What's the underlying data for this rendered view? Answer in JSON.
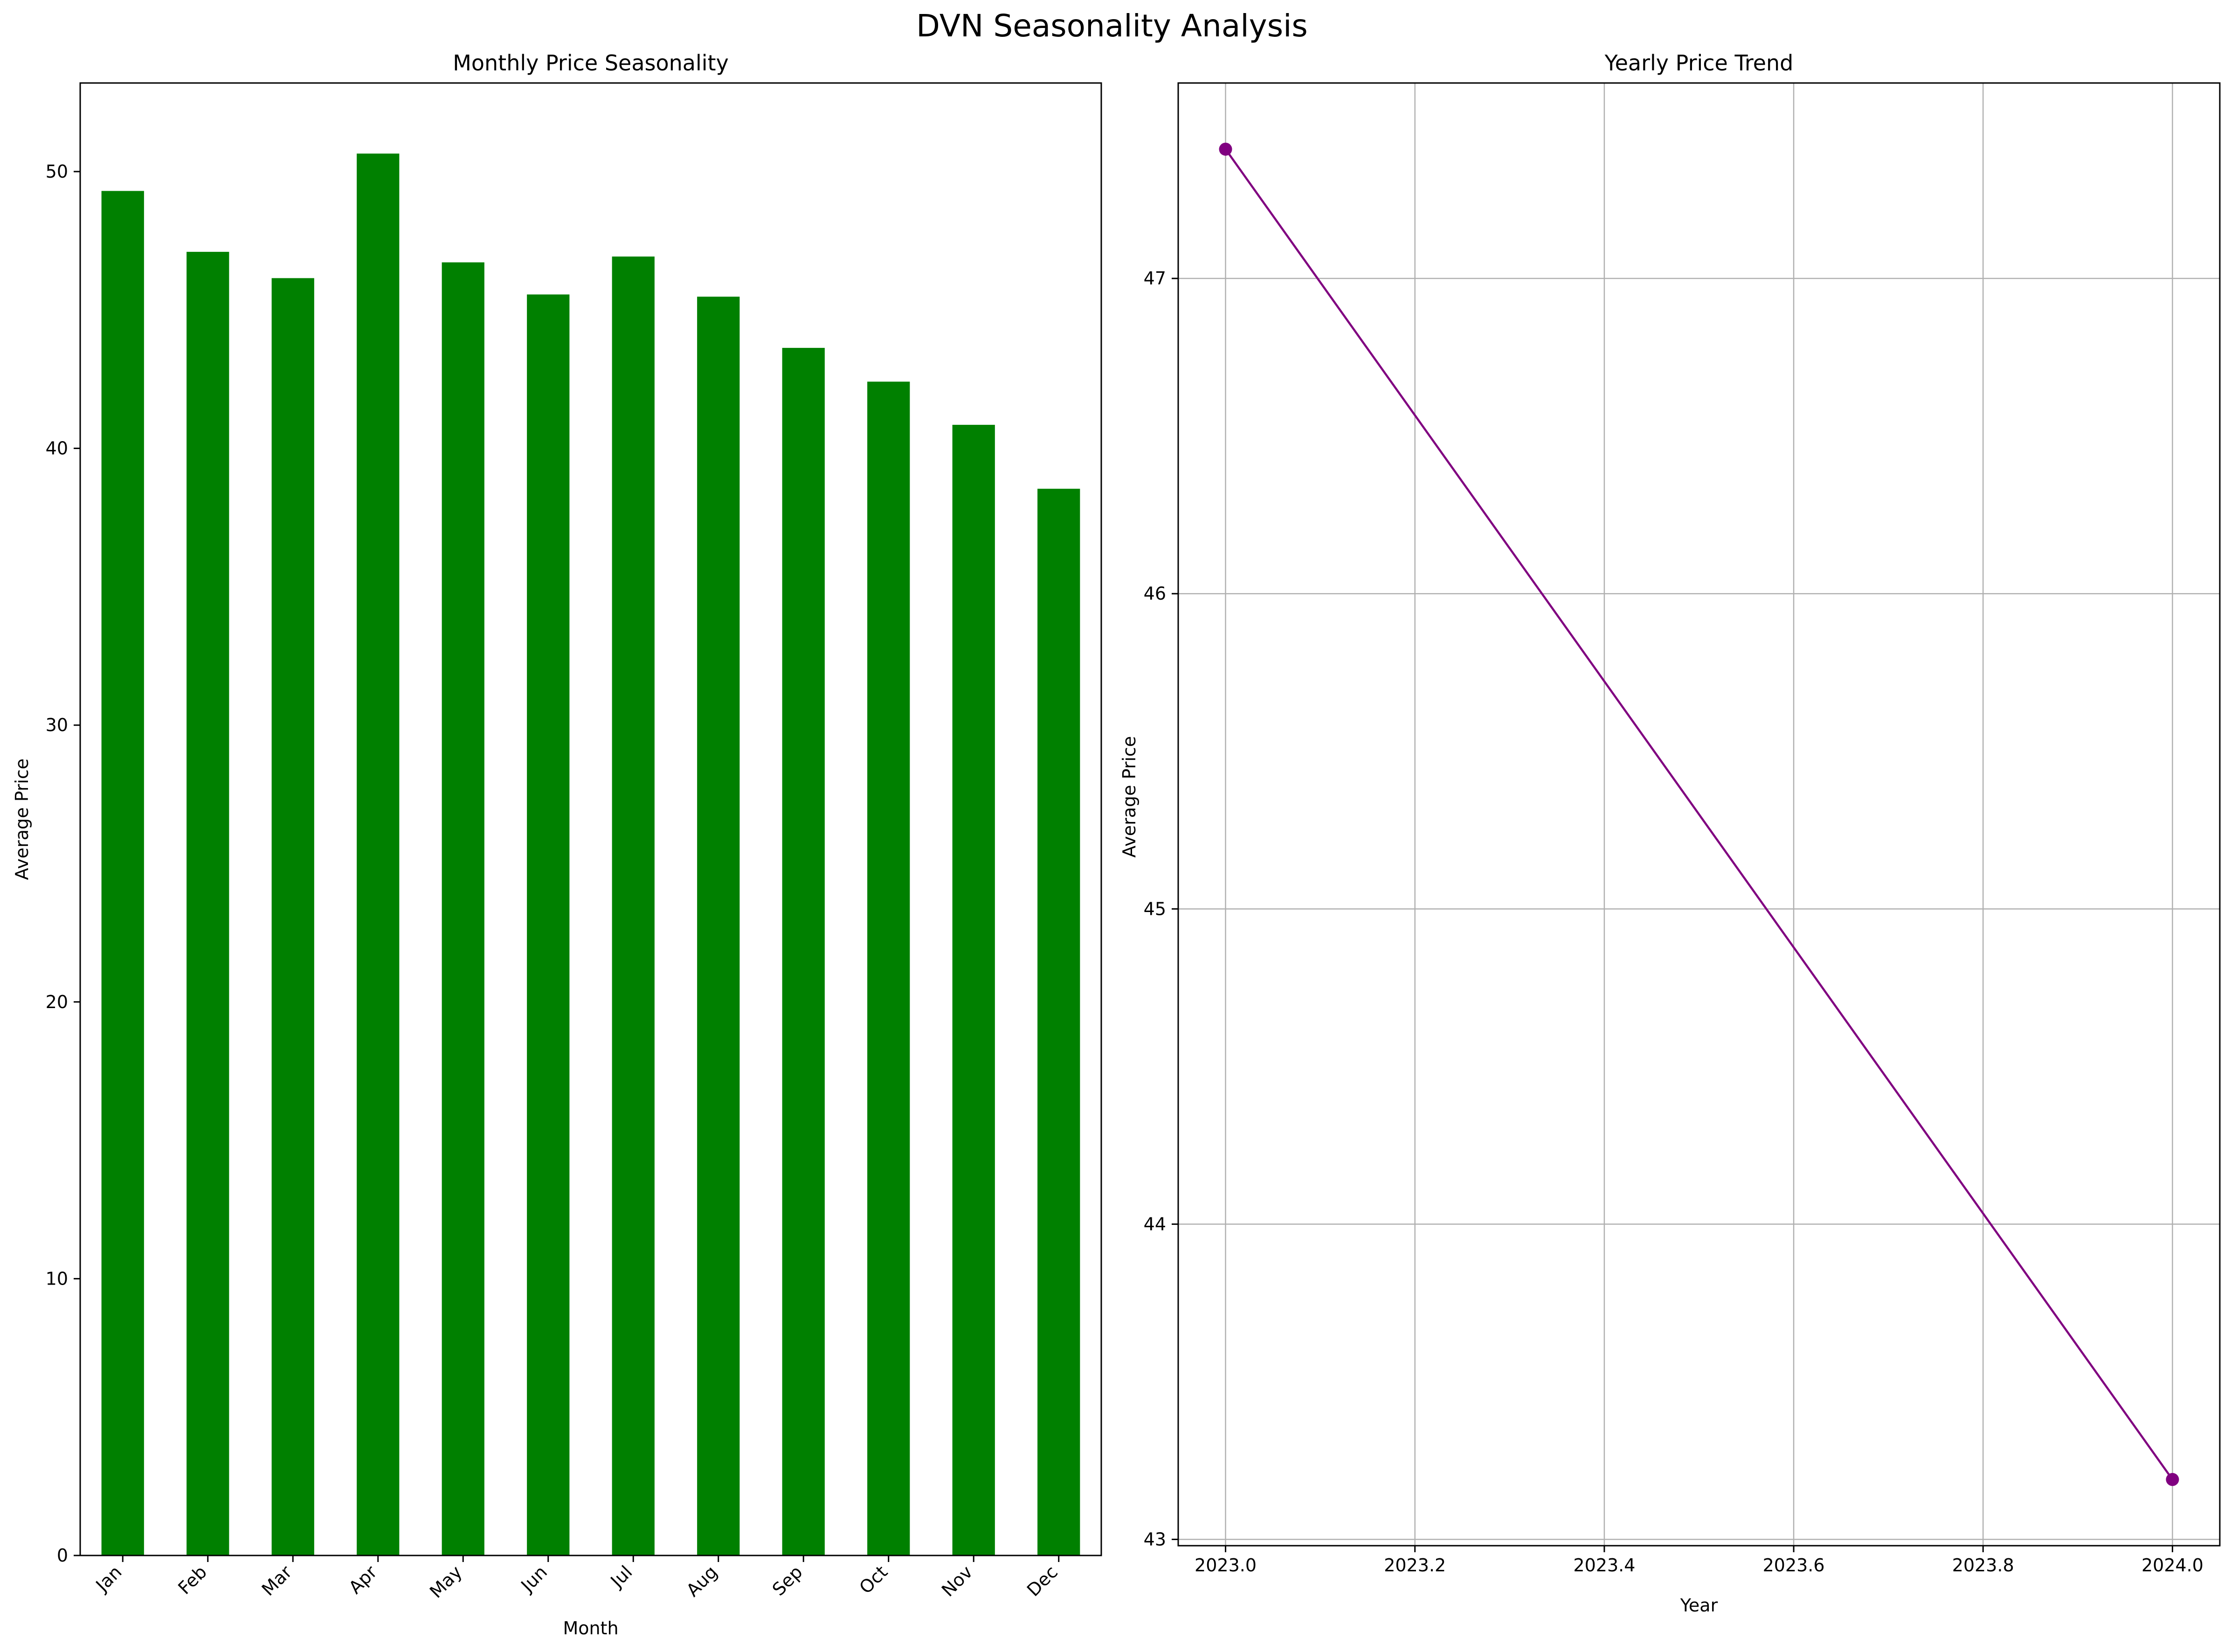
{
  "figure": {
    "suptitle": "DVN Seasonality Analysis"
  },
  "chart_data": [
    {
      "type": "bar",
      "title": "Monthly Price Seasonality",
      "xlabel": "Month",
      "ylabel": "Average Price",
      "categories": [
        "Jan",
        "Feb",
        "Mar",
        "Apr",
        "May",
        "Jun",
        "Jul",
        "Aug",
        "Sep",
        "Oct",
        "Nov",
        "Dec"
      ],
      "values": [
        49.3,
        47.1,
        46.15,
        50.65,
        46.72,
        45.56,
        46.93,
        45.48,
        43.63,
        42.41,
        40.85,
        38.54
      ],
      "ylim": [
        0,
        53.2
      ],
      "yticks": [
        0,
        10,
        20,
        30,
        40,
        50
      ],
      "color": "#008000",
      "grid": false,
      "xtick_rotation": 45
    },
    {
      "type": "line",
      "title": "Yearly Price Trend",
      "xlabel": "Year",
      "ylabel": "Average Price",
      "x": [
        2023.0,
        2024.0
      ],
      "values": [
        47.41,
        43.19
      ],
      "xlim": [
        2022.95,
        2024.05
      ],
      "ylim": [
        42.98,
        47.62
      ],
      "xticks": [
        "2023.0",
        "2023.2",
        "2023.4",
        "2023.6",
        "2023.8",
        "2024.0"
      ],
      "yticks": [
        43,
        44,
        45,
        46,
        47
      ],
      "color": "#800080",
      "marker": "circle",
      "grid": true
    }
  ]
}
